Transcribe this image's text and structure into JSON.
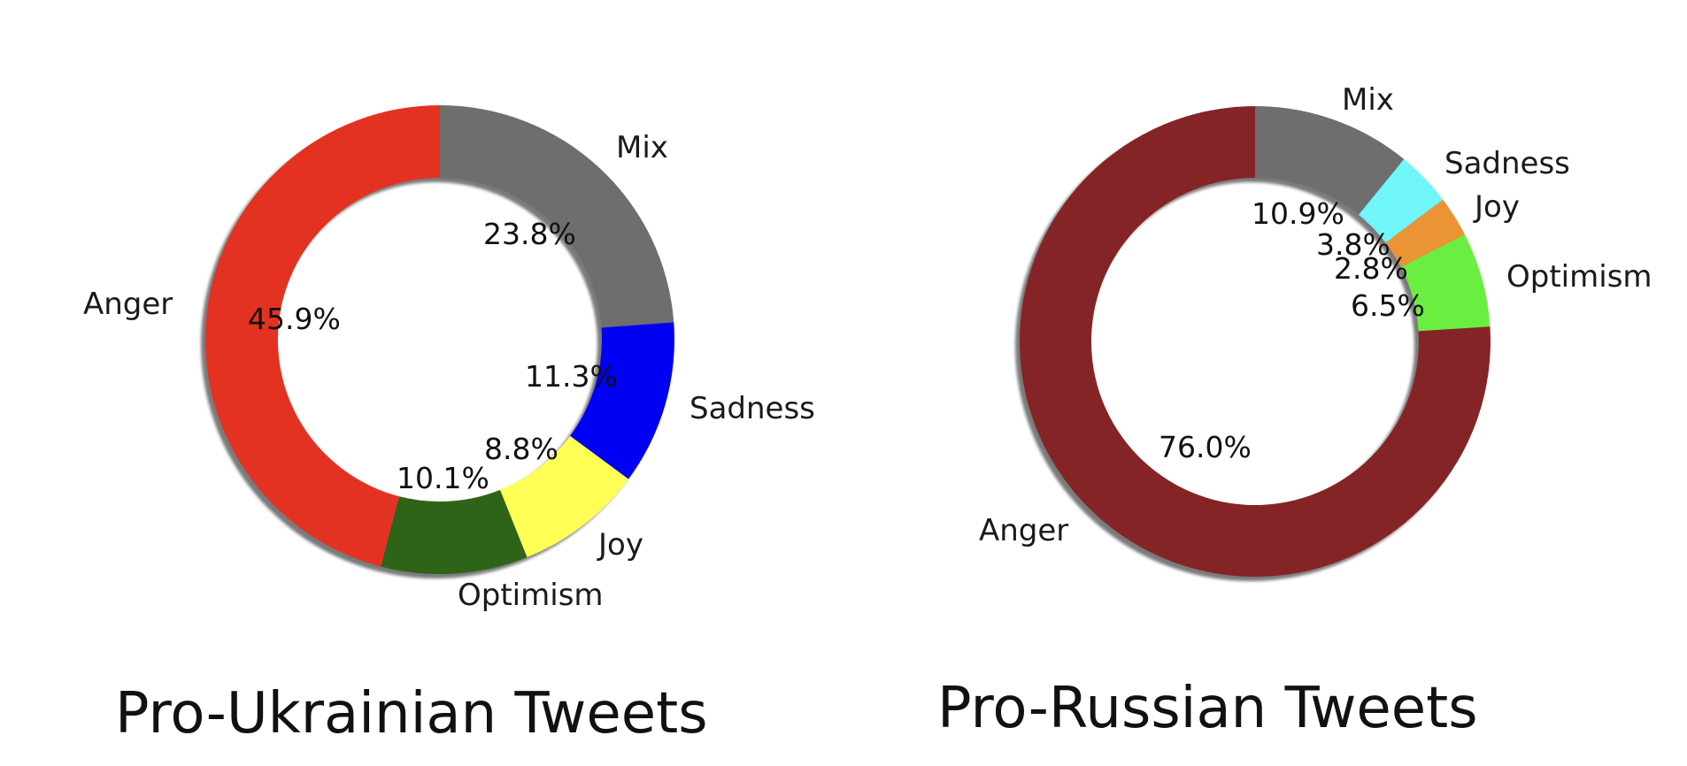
{
  "chart_data": [
    {
      "type": "pie",
      "title": "Pro-Ukrainian Tweets",
      "slices": [
        {
          "label": "Mix",
          "value": 23.8,
          "pct_text": "23.8%",
          "color": "#6e6e6e"
        },
        {
          "label": "Sadness",
          "value": 11.3,
          "pct_text": "11.3%",
          "color": "#0000f5"
        },
        {
          "label": "Joy",
          "value": 8.8,
          "pct_text": "8.8%",
          "color": "#ffff55"
        },
        {
          "label": "Optimism",
          "value": 10.1,
          "pct_text": "10.1%",
          "color": "#2e6418"
        },
        {
          "label": "Anger",
          "value": 45.9,
          "pct_text": "45.9%",
          "color": "#e43222"
        }
      ]
    },
    {
      "type": "pie",
      "title": "Pro-Russian Tweets",
      "slices": [
        {
          "label": "Mix",
          "value": 10.9,
          "pct_text": "10.9%",
          "color": "#6e6e6e"
        },
        {
          "label": "Sadness",
          "value": 3.8,
          "pct_text": "3.8%",
          "color": "#70f5f8"
        },
        {
          "label": "Joy",
          "value": 2.8,
          "pct_text": "2.8%",
          "color": "#ea9435"
        },
        {
          "label": "Optimism",
          "value": 6.5,
          "pct_text": "6.5%",
          "color": "#6aef41"
        },
        {
          "label": "Anger",
          "value": 76.0,
          "pct_text": "76.0%",
          "color": "#852426"
        }
      ]
    }
  ]
}
